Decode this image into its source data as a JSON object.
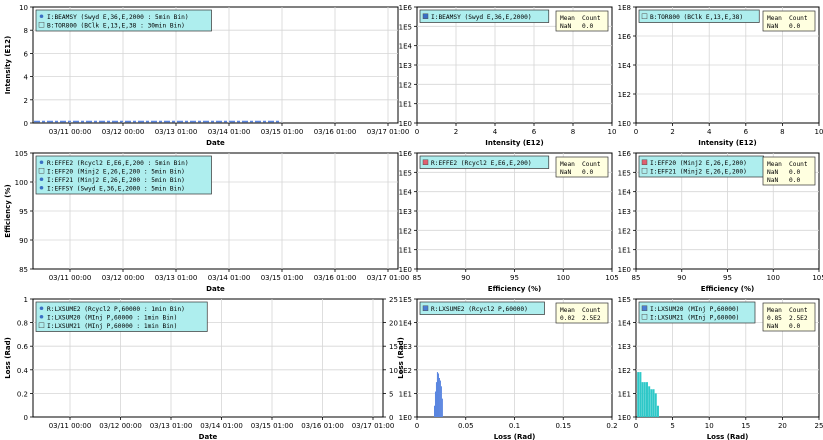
{
  "time_ticks": [
    "03/11 00:00",
    "03/12 00:00",
    "03/13 01:00",
    "03/14 01:00",
    "03/15 01:00",
    "03/16 01:00",
    "03/17 01:00"
  ],
  "log_ticks_e6": [
    "1E0",
    "1E1",
    "1E2",
    "1E3",
    "1E4",
    "1E5",
    "1E6"
  ],
  "log_ticks_e5": [
    "1E0",
    "1E1",
    "1E2",
    "1E3",
    "1E4",
    "1E5"
  ],
  "colors": {
    "legend_bg": "#aeeeee",
    "stats_bg": "#ffffe0",
    "blue_bar": "#5b86e0",
    "teal_bar": "#2ec8c8",
    "grid": "#d6d6d6"
  },
  "chart_data": [
    {
      "id": "ts1",
      "type": "line",
      "xlabel": "Date",
      "ylabel": "Intensity (E12)",
      "ylim": [
        0,
        10
      ],
      "y_ticks": [
        "0",
        "2",
        "4",
        "6",
        "8",
        "10"
      ],
      "legend": [
        {
          "marker": "dot",
          "text": "I:BEAMSY (Swyd E,36,E,2000 : 5min Bin)"
        },
        {
          "marker": "square",
          "text": "B:TOR800 (BClk E,13,E,38 : 30min Bin)"
        }
      ],
      "note": "series flat near 0 across the full date range"
    },
    {
      "id": "h1",
      "type": "bar",
      "xlabel": "Intensity (E12)",
      "xlim": [
        0,
        10
      ],
      "x_ticks": [
        "0",
        "2",
        "4",
        "6",
        "8",
        "10"
      ],
      "y_scale": "log",
      "ylim": [
        "1E0",
        "1E6"
      ],
      "legend": [
        {
          "marker": "filled-square",
          "text": "I:BEAMSY (Swyd E,36,E,2000)"
        }
      ],
      "stats": {
        "headers": [
          "Mean",
          "Count"
        ],
        "rows": [
          [
            "NaN",
            "0.0"
          ]
        ]
      }
    },
    {
      "id": "h2",
      "type": "bar",
      "xlabel": "Intensity (E12)",
      "xlim": [
        0,
        10
      ],
      "x_ticks": [
        "0",
        "2",
        "4",
        "6",
        "8",
        "10"
      ],
      "y_scale": "log",
      "ylim": [
        "1E0",
        "1E8"
      ],
      "y_ticks": [
        "1E0",
        "1E2",
        "1E4",
        "1E6",
        "1E8"
      ],
      "legend": [
        {
          "marker": "square",
          "text": "B:TOR800 (BClk E,13,E,38)"
        }
      ],
      "stats": {
        "headers": [
          "Mean",
          "Count"
        ],
        "rows": [
          [
            "NaN",
            "0.0"
          ]
        ]
      }
    },
    {
      "id": "ts2",
      "type": "line",
      "xlabel": "Date",
      "ylabel": "Efficiency (%)",
      "ylim": [
        85,
        105
      ],
      "y_ticks": [
        "85",
        "90",
        "95",
        "100",
        "105"
      ],
      "legend": [
        {
          "marker": "dot",
          "text": "R:EFFE2 (Rcycl2 E,E6,E,200 : 5min Bin)"
        },
        {
          "marker": "square",
          "text": "I:EFF20 (Minj2 E,26,E,200 : 5min Bin)"
        },
        {
          "marker": "dot",
          "text": "I:EFF21 (Minj2 E,26,E,200 : 5min Bin)"
        },
        {
          "marker": "dot",
          "text": "I:EFFSY (Swyd E,36,E,2000 : 5min Bin)"
        }
      ]
    },
    {
      "id": "h3",
      "type": "bar",
      "xlabel": "Efficiency (%)",
      "xlim": [
        85,
        105
      ],
      "x_ticks": [
        "85",
        "90",
        "95",
        "100",
        "105"
      ],
      "y_scale": "log",
      "ylim": [
        "1E0",
        "1E6"
      ],
      "legend": [
        {
          "marker": "red-square",
          "text": "R:EFFE2 (Rcycl2 E,E6,E,200)"
        }
      ],
      "stats": {
        "headers": [
          "Mean",
          "Count"
        ],
        "rows": [
          [
            "NaN",
            "0.0"
          ]
        ]
      }
    },
    {
      "id": "h4",
      "type": "bar",
      "xlabel": "Efficiency (%)",
      "xlim": [
        85,
        105
      ],
      "x_ticks": [
        "85",
        "90",
        "95",
        "100",
        "105"
      ],
      "y_scale": "log",
      "ylim": [
        "1E0",
        "1E6"
      ],
      "legend": [
        {
          "marker": "red-square",
          "text": "I:EFF20 (Minj2 E,26,E,200)"
        },
        {
          "marker": "square",
          "text": "I:EFF21 (Minj2 E,26,E,200)"
        }
      ],
      "stats": {
        "headers": [
          "Mean",
          "Count"
        ],
        "rows": [
          [
            "NaN",
            "0.0"
          ],
          [
            "NaN",
            "0.0"
          ]
        ]
      }
    },
    {
      "id": "ts3",
      "type": "line",
      "xlabel": "Date",
      "ylabel": "Loss (Rad)",
      "ylim": [
        0,
        1
      ],
      "y_ticks": [
        "0",
        "0.2",
        "0.4",
        "0.6",
        "0.8",
        "1"
      ],
      "y2label": "Loss (Rad)",
      "y2lim": [
        0,
        25
      ],
      "y2_ticks": [
        "0",
        "5",
        "10",
        "15",
        "20",
        "25"
      ],
      "legend": [
        {
          "marker": "dot",
          "text": "R:LXSUME2 (Rcycl2 P,60000 : 1min Bin)"
        },
        {
          "marker": "dot",
          "text": "I:LXSUM20 (MInj P,60000 : 1min Bin)"
        },
        {
          "marker": "square",
          "text": "I:LXSUM21 (MInj P,60000 : 1min Bin)"
        }
      ]
    },
    {
      "id": "h5",
      "type": "bar",
      "xlabel": "Loss (Rad)",
      "xlim": [
        0,
        0.2
      ],
      "x_ticks": [
        "0",
        "0.05",
        "0.1",
        "0.15",
        "0.2"
      ],
      "y_scale": "log",
      "ylim": [
        "1E0",
        "1E5"
      ],
      "legend": [
        {
          "marker": "blue-square",
          "text": "R:LXSUME2 (Rcycl2 P,60000)"
        }
      ],
      "stats": {
        "headers": [
          "Mean",
          "Count"
        ],
        "rows": [
          [
            "0.02",
            "2.5E2"
          ]
        ]
      },
      "bins": {
        "x": [
          0.018,
          0.019,
          0.02,
          0.021,
          0.022,
          0.023,
          0.024,
          0.025,
          0.026
        ],
        "counts": [
          3,
          12,
          30,
          80,
          70,
          45,
          35,
          20,
          6
        ]
      }
    },
    {
      "id": "h6",
      "type": "bar",
      "xlabel": "Loss (Rad)",
      "xlim": [
        0,
        25
      ],
      "x_ticks": [
        "0",
        "5",
        "10",
        "15",
        "20",
        "25"
      ],
      "y_scale": "log",
      "ylim": [
        "1E0",
        "1E5"
      ],
      "legend": [
        {
          "marker": "blue-square",
          "text": "I:LXSUM20 (MInj P,60000)"
        },
        {
          "marker": "square",
          "text": "I:LXSUM21 (MInj P,60000)"
        }
      ],
      "stats": {
        "headers": [
          "Mean",
          "Count"
        ],
        "rows": [
          [
            "0.85",
            "2.5E2"
          ],
          [
            "NaN",
            "0.0"
          ]
        ]
      },
      "bins": {
        "x": [
          0.3,
          0.6,
          0.9,
          1.2,
          1.5,
          1.8,
          2.1,
          2.4,
          2.7,
          3.0
        ],
        "counts": [
          80,
          80,
          30,
          30,
          30,
          20,
          15,
          15,
          10,
          3
        ]
      }
    }
  ]
}
